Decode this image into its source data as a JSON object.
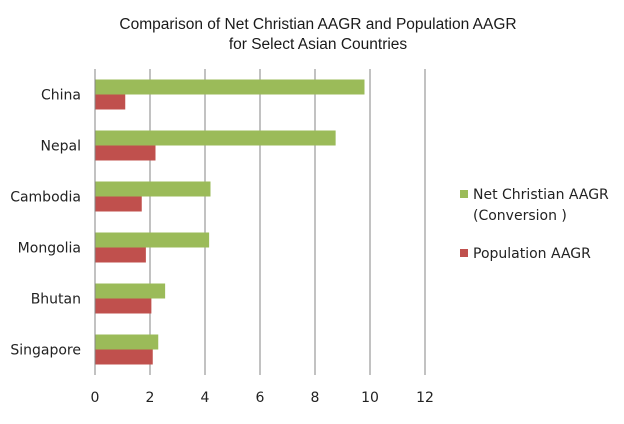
{
  "chart_data": {
    "type": "bar",
    "orientation": "horizontal",
    "title": "Comparison of Net Christian AAGR and Population AAGR for Select Asian Countries",
    "title_lines": [
      "Comparison of Net Christian AAGR and Population AAGR",
      "for Select Asian Countries"
    ],
    "categories": [
      "China",
      "Nepal",
      "Cambodia",
      "Mongolia",
      "Bhutan",
      "Singapore"
    ],
    "series": [
      {
        "name": "Net Christian AAGR (Conversion )",
        "legend_lines": [
          "Net Christian AAGR",
          "(Conversion )"
        ],
        "color": "#9bbb59",
        "values": [
          9.8,
          8.75,
          4.2,
          4.15,
          2.55,
          2.3
        ]
      },
      {
        "name": "Population AAGR",
        "legend_lines": [
          "Population AAGR"
        ],
        "color": "#c0504d",
        "values": [
          1.1,
          2.2,
          1.7,
          1.85,
          2.05,
          2.1
        ]
      }
    ],
    "xlim": [
      0,
      12
    ],
    "xticks": [
      0,
      2,
      4,
      6,
      8,
      10,
      12
    ],
    "xlabel": "",
    "ylabel": "",
    "grid": "vertical",
    "legend_position": "right"
  },
  "colors": {
    "grid": "#868686",
    "axis": "#868686"
  }
}
